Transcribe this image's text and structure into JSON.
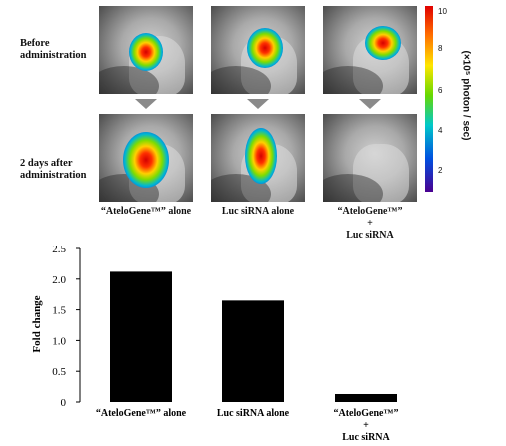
{
  "row_labels": {
    "before": [
      "Before",
      "administration"
    ],
    "after": [
      "2 days after",
      "administration"
    ]
  },
  "image_groups": [
    {
      "name": "atelogene-alone",
      "caption": [
        "“AteloGene™” alone"
      ]
    },
    {
      "name": "luc-sirna-alone",
      "caption": [
        "Luc siRNA alone"
      ]
    },
    {
      "name": "atelogene-plus-luc",
      "caption": [
        "“AteloGene™”",
        "+",
        "Luc siRNA"
      ]
    }
  ],
  "colorbar": {
    "ticks": [
      "10",
      "8",
      "6",
      "4",
      "2"
    ],
    "unit": "(×10⁵ photon / sec)",
    "colors": [
      "#e00000",
      "#ffe600",
      "#66d800",
      "#00c9c9",
      "#0050e0",
      "#4a0090"
    ]
  },
  "chart_data": {
    "type": "bar",
    "categories": [
      "“AteloGene™” alone",
      "Luc siRNA alone",
      "“AteloGene™” + Luc siRNA"
    ],
    "category_lines": [
      [
        "“AteloGene™” alone"
      ],
      [
        "Luc siRNA alone"
      ],
      [
        "“AteloGene™”",
        "+",
        "Luc siRNA"
      ]
    ],
    "values": [
      2.12,
      1.65,
      0.13
    ],
    "ylabel": "Fold change",
    "ylim": [
      0,
      2.5
    ],
    "yticks": [
      0,
      0.5,
      1.0,
      1.5,
      2.0,
      2.5
    ],
    "ytick_labels": [
      "0",
      "0.5",
      "1.0",
      "1.5",
      "2.0",
      "2.5"
    ],
    "bar_color": "#000000",
    "grid": false
  }
}
